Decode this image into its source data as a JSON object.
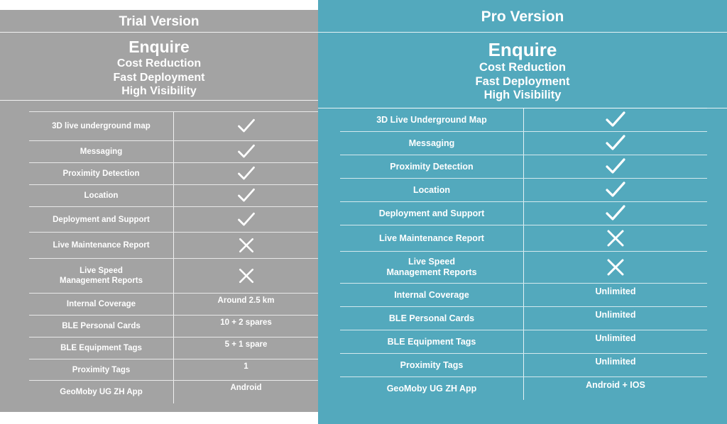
{
  "trial": {
    "title": "Trial Version",
    "features": {
      "heading": "Enquire",
      "lines": [
        "Cost Reduction",
        "Fast Deployment",
        "High Visibility"
      ]
    },
    "rows": [
      {
        "label": "3D live underground map",
        "mark": "check-icon"
      },
      {
        "label": "Messaging",
        "mark": "check-icon"
      },
      {
        "label": "Proximity Detection",
        "mark": "check-icon"
      },
      {
        "label": "Location",
        "mark": "check-icon"
      },
      {
        "label": "Deployment and Support",
        "mark": "check-icon"
      },
      {
        "label": "Live Maintenance Report",
        "mark": "cross-icon"
      },
      {
        "label": "Live Speed\nManagement Reports",
        "mark": "cross-icon"
      },
      {
        "label": "Internal Coverage",
        "value": "Around 2.5 km"
      },
      {
        "label": "BLE Personal Cards",
        "value": "10 + 2 spares"
      },
      {
        "label": "BLE Equipment Tags",
        "value": "5 + 1 spare"
      },
      {
        "label": "Proximity Tags",
        "value": "1"
      },
      {
        "label": "GeoMoby UG ZH App",
        "value": "Android"
      }
    ]
  },
  "pro": {
    "title": "Pro Version",
    "features": {
      "heading": "Enquire",
      "lines": [
        "Cost Reduction",
        "Fast Deployment",
        "High Visibility"
      ]
    },
    "rows": [
      {
        "label": "3D Live Underground Map",
        "mark": "check-icon"
      },
      {
        "label": "Messaging",
        "mark": "check-icon"
      },
      {
        "label": "Proximity Detection",
        "mark": "check-icon"
      },
      {
        "label": "Location",
        "mark": "check-icon"
      },
      {
        "label": "Deployment and Support",
        "mark": "check-icon"
      },
      {
        "label": "Live Maintenance Report",
        "mark": "cross-icon"
      },
      {
        "label": "Live Speed\nManagement Reports",
        "mark": "cross-icon"
      },
      {
        "label": "Internal Coverage",
        "value": "Unlimited"
      },
      {
        "label": "BLE Personal Cards",
        "value": "Unlimited"
      },
      {
        "label": "BLE Equipment Tags",
        "value": "Unlimited"
      },
      {
        "label": "Proximity Tags",
        "value": "Unlimited"
      },
      {
        "label": "GeoMoby UG ZH App",
        "value": "Android + IOS"
      }
    ]
  }
}
